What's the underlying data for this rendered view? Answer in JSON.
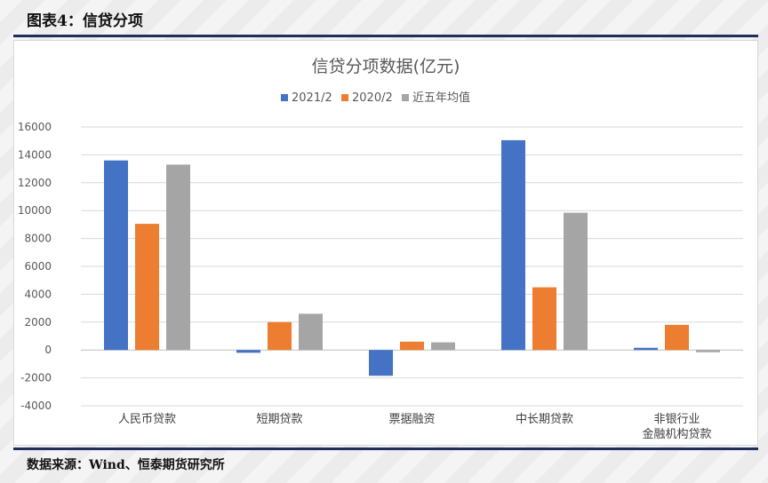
{
  "header": {
    "title": "图表4：信贷分项"
  },
  "footer": {
    "source": "数据来源：Wind、恒泰期货研究所"
  },
  "chart_data": {
    "type": "bar",
    "title": "信贷分项数据(亿元)",
    "categories": [
      [
        "人民币贷款"
      ],
      [
        "短期贷款"
      ],
      [
        "票据融资"
      ],
      [
        "中长期贷款"
      ],
      [
        "非银行业",
        "金融机构贷款"
      ]
    ],
    "series": [
      {
        "name": "2021/2",
        "color": "#4472c4",
        "values": [
          13600,
          -200,
          -1850,
          15050,
          150
        ]
      },
      {
        "name": "2020/2",
        "color": "#ed7d31",
        "values": [
          9050,
          2000,
          600,
          4500,
          1800
        ]
      },
      {
        "name": "近五年均值",
        "color": "#a5a5a5",
        "values": [
          13300,
          2600,
          550,
          9850,
          -100
        ]
      }
    ],
    "ylim": [
      -4000,
      16000
    ],
    "yticks": [
      16000,
      14000,
      12000,
      10000,
      8000,
      6000,
      4000,
      2000,
      0,
      -2000,
      -4000
    ],
    "grid": true,
    "legend": "top-center"
  }
}
